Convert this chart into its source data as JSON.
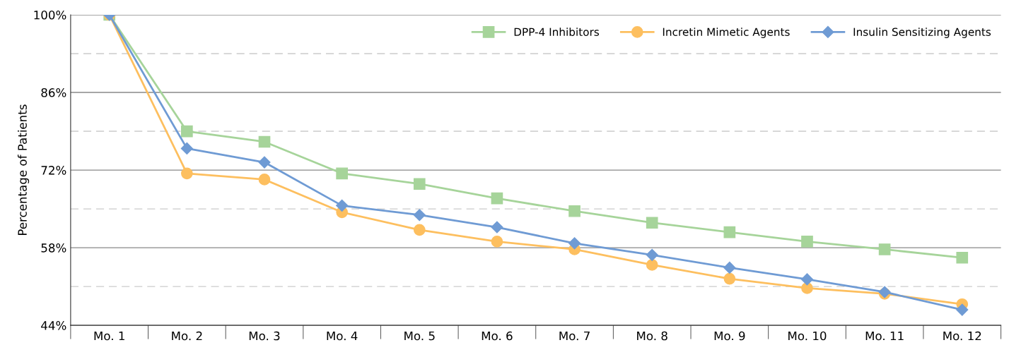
{
  "chart_data": {
    "type": "line",
    "ylabel": "Percentage of Patients",
    "categories": [
      "Mo. 1",
      "Mo. 2",
      "Mo. 3",
      "Mo. 4",
      "Mo. 5",
      "Mo. 6",
      "Mo. 7",
      "Mo. 8",
      "Mo. 9",
      "Mo. 10",
      "Mo. 11",
      "Mo. 12"
    ],
    "series": [
      {
        "name": "DPP-4 Inhibitors",
        "color": "#a6d49a",
        "marker": "square",
        "values": [
          100,
          79,
          77.1,
          71.4,
          69.5,
          66.9,
          64.6,
          62.5,
          60.8,
          59.1,
          57.7,
          56.2
        ]
      },
      {
        "name": "Incretin Mimetic Agents",
        "color": "#fdbf5f",
        "marker": "circle",
        "values": [
          100,
          71.4,
          70.3,
          64.4,
          61.2,
          59.1,
          57.7,
          54.9,
          52.4,
          50.7,
          49.7,
          47.8
        ]
      },
      {
        "name": "Insulin Sensitizing Agents",
        "color": "#6f9bd4",
        "marker": "diamond",
        "values": [
          100,
          75.9,
          73.4,
          65.6,
          63.9,
          61.7,
          58.8,
          56.7,
          54.4,
          52.3,
          50.0,
          46.8
        ]
      }
    ],
    "ylim": [
      44,
      100
    ],
    "yticks": [
      {
        "value": 44,
        "label": "44%"
      },
      {
        "value": 51,
        "label": null
      },
      {
        "value": 58,
        "label": "58%"
      },
      {
        "value": 65,
        "label": null
      },
      {
        "value": 72,
        "label": "72%"
      },
      {
        "value": 79,
        "label": null
      },
      {
        "value": 86,
        "label": "86%"
      },
      {
        "value": 93,
        "label": null
      },
      {
        "value": 100,
        "label": "100%"
      }
    ],
    "grid": "y",
    "legend": "top right"
  }
}
